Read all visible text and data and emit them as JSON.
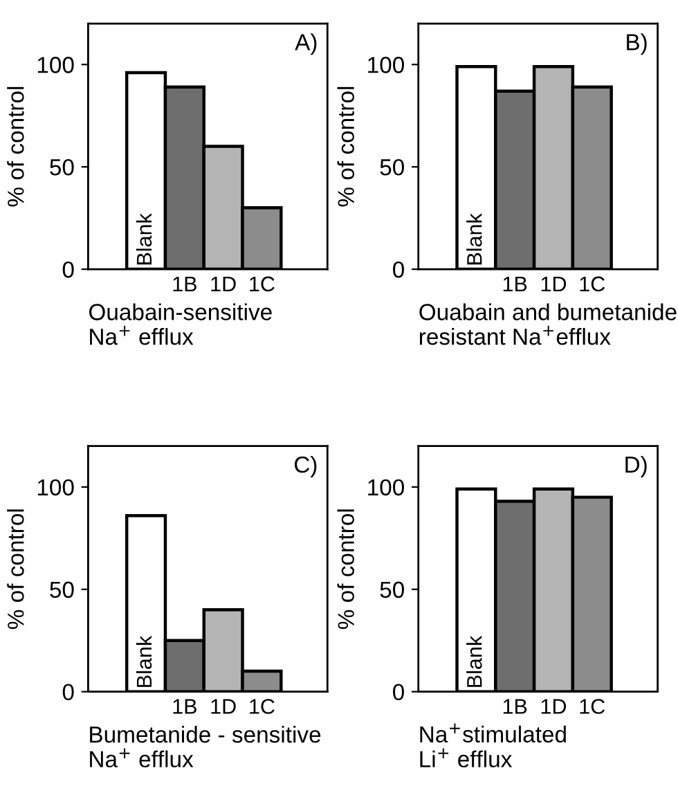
{
  "chart_data": [
    {
      "type": "bar",
      "annotations": [
        "A)"
      ],
      "ylabel": "% of control",
      "xlabel": "Ouabain-sensitive\nNa$^{+}$ efflux",
      "categories": [
        "Blank",
        "1B",
        "1D",
        "1C"
      ],
      "values": [
        96,
        89,
        60,
        30
      ],
      "colors": [
        "#ffffff",
        "#6e6e6e",
        "#b4b4b4",
        "#8c8c8c"
      ],
      "ylim": [
        0,
        120
      ],
      "yticks": [
        0,
        50,
        100
      ],
      "grid": false,
      "legend": false
    },
    {
      "type": "bar",
      "annotations": [
        "B)"
      ],
      "ylabel": "% of control",
      "xlabel": "Ouabain and bumetanide\nresistant Na$^{+}$efflux",
      "categories": [
        "Blank",
        "1B",
        "1D",
        "1C"
      ],
      "values": [
        99,
        87,
        99,
        89
      ],
      "colors": [
        "#ffffff",
        "#6e6e6e",
        "#b4b4b4",
        "#8c8c8c"
      ],
      "ylim": [
        0,
        120
      ],
      "yticks": [
        0,
        50,
        100
      ],
      "grid": false,
      "legend": false
    },
    {
      "type": "bar",
      "annotations": [
        "C)"
      ],
      "ylabel": "% of control",
      "xlabel": "Bumetanide - sensitive\nNa$^{+}$ efflux",
      "categories": [
        "Blank",
        "1B",
        "1D",
        "1C"
      ],
      "values": [
        86,
        25,
        40,
        10
      ],
      "colors": [
        "#ffffff",
        "#6e6e6e",
        "#b4b4b4",
        "#8c8c8c"
      ],
      "ylim": [
        0,
        120
      ],
      "yticks": [
        0,
        50,
        100
      ],
      "grid": false,
      "legend": false
    },
    {
      "type": "bar",
      "annotations": [
        "D)"
      ],
      "ylabel": "% of control",
      "xlabel": "Na$^{+}$stimulated\nLi$^{+}$ efflux",
      "categories": [
        "Blank",
        "1B",
        "1D",
        "1C"
      ],
      "values": [
        99,
        93,
        99,
        95
      ],
      "colors": [
        "#ffffff",
        "#6e6e6e",
        "#b4b4b4",
        "#8c8c8c"
      ],
      "ylim": [
        0,
        120
      ],
      "yticks": [
        0,
        50,
        100
      ],
      "grid": false,
      "legend": false
    }
  ]
}
